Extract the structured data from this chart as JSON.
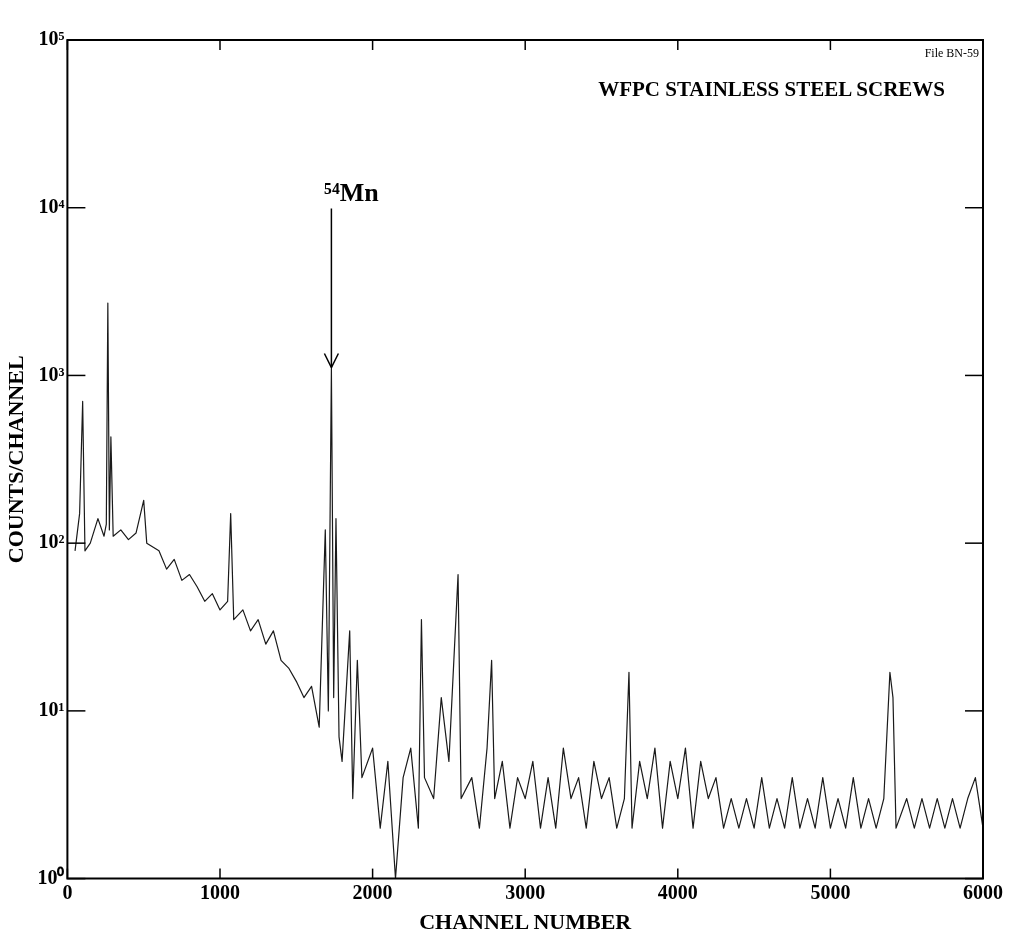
{
  "chart_data": {
    "type": "line",
    "title": "WFPC STAINLESS STEEL SCREWS",
    "xlabel": "CHANNEL NUMBER",
    "ylabel": "COUNTS/CHANNEL",
    "annotations": [
      "File BN-59",
      {
        "text": "⁵⁴Mn",
        "x": 1730,
        "y": 1100
      }
    ],
    "x": [
      50,
      80,
      100,
      115,
      150,
      200,
      240,
      255,
      265,
      275,
      285,
      300,
      350,
      400,
      450,
      500,
      520,
      600,
      650,
      700,
      750,
      800,
      850,
      900,
      950,
      1000,
      1050,
      1070,
      1090,
      1150,
      1200,
      1250,
      1300,
      1350,
      1400,
      1450,
      1500,
      1550,
      1600,
      1650,
      1690,
      1710,
      1730,
      1745,
      1760,
      1780,
      1800,
      1850,
      1870,
      1900,
      1930,
      2000,
      2050,
      2100,
      2150,
      2200,
      2250,
      2300,
      2320,
      2340,
      2400,
      2450,
      2500,
      2560,
      2580,
      2650,
      2700,
      2750,
      2780,
      2800,
      2850,
      2900,
      2950,
      3000,
      3050,
      3100,
      3150,
      3200,
      3250,
      3300,
      3350,
      3400,
      3450,
      3500,
      3550,
      3600,
      3650,
      3680,
      3700,
      3750,
      3800,
      3850,
      3900,
      3950,
      4000,
      4050,
      4100,
      4150,
      4200,
      4250,
      4300,
      4350,
      4400,
      4450,
      4500,
      4550,
      4600,
      4650,
      4700,
      4750,
      4800,
      4850,
      4900,
      4950,
      5000,
      5050,
      5100,
      5150,
      5200,
      5250,
      5300,
      5350,
      5390,
      5410,
      5430,
      5500,
      5550,
      5600,
      5650,
      5700,
      5750,
      5800,
      5850,
      5900,
      5950,
      6000
    ],
    "values": [
      90,
      150,
      700,
      90,
      100,
      140,
      110,
      130,
      2700,
      120,
      430,
      110,
      120,
      105,
      115,
      180,
      100,
      90,
      70,
      80,
      60,
      65,
      55,
      45,
      50,
      40,
      45,
      150,
      35,
      40,
      30,
      35,
      25,
      30,
      20,
      18,
      15,
      12,
      14,
      8,
      120,
      10,
      1100,
      12,
      140,
      7,
      5,
      30,
      3,
      20,
      4,
      6,
      2,
      5,
      1,
      4,
      6,
      2,
      35,
      4,
      3,
      12,
      5,
      65,
      3,
      4,
      2,
      6,
      20,
      3,
      5,
      2,
      4,
      3,
      5,
      2,
      4,
      2,
      6,
      3,
      4,
      2,
      5,
      3,
      4,
      2,
      3,
      17,
      2,
      5,
      3,
      6,
      2,
      5,
      3,
      6,
      2,
      5,
      3,
      4,
      2,
      3,
      2,
      3,
      2,
      4,
      2,
      3,
      2,
      4,
      2,
      3,
      2,
      4,
      2,
      3,
      2,
      4,
      2,
      3,
      2,
      3,
      17,
      12,
      2,
      3,
      2,
      3,
      2,
      3,
      2,
      3,
      2,
      3,
      4,
      2
    ],
    "color": "#1a1a1a",
    "log": true,
    "xlim": [
      0,
      6000
    ],
    "xticks": [
      0,
      1000,
      2000,
      3000,
      4000,
      5000,
      6000
    ],
    "ylim": [
      1,
      100000
    ],
    "yticks": [
      {
        "value": 1,
        "label": "10⁰"
      },
      {
        "value": 10,
        "label": "10¹"
      },
      {
        "value": 100,
        "label": "10²"
      },
      {
        "value": 1000,
        "label": "10³"
      },
      {
        "value": 10000,
        "label": "10⁴"
      },
      {
        "value": 100000,
        "label": "10⁵"
      }
    ],
    "grid": false,
    "legend": false,
    "marker": "none",
    "line_style": "solid"
  }
}
